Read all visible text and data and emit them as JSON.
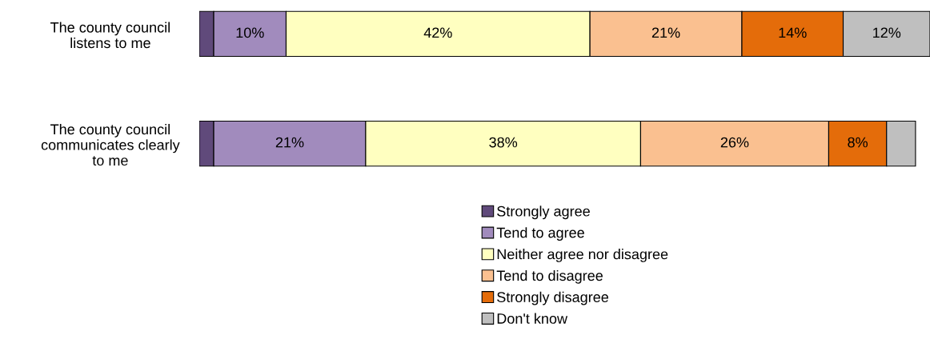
{
  "chart_data": {
    "type": "bar",
    "orientation": "horizontal",
    "stacked": true,
    "categories": [
      "The county council\nlistens to me",
      "The county council\ncommunicates clearly\nto me"
    ],
    "series": [
      {
        "name": "Strongly agree",
        "color": "#604a7b",
        "values": [
          2,
          2
        ],
        "value_labels": [
          null,
          null
        ]
      },
      {
        "name": "Tend to agree",
        "color": "#a18bbd",
        "values": [
          10,
          21
        ],
        "value_labels": [
          "10%",
          "21%"
        ]
      },
      {
        "name": "Neither agree nor disagree",
        "color": "#ffffc0",
        "values": [
          42,
          38
        ],
        "value_labels": [
          "42%",
          "38%"
        ]
      },
      {
        "name": "Tend to disagree",
        "color": "#fac090",
        "values": [
          21,
          26
        ],
        "value_labels": [
          "21%",
          "26%"
        ]
      },
      {
        "name": "Strongly disagree",
        "color": "#e46c0a",
        "values": [
          14,
          8
        ],
        "value_labels": [
          "14%",
          "8%"
        ]
      },
      {
        "name": "Don't know",
        "color": "#bfbfbf",
        "values": [
          12,
          4
        ],
        "value_labels": [
          "12%",
          null
        ]
      }
    ],
    "legend": "bottom",
    "grid": false,
    "tick_labels": "y"
  }
}
